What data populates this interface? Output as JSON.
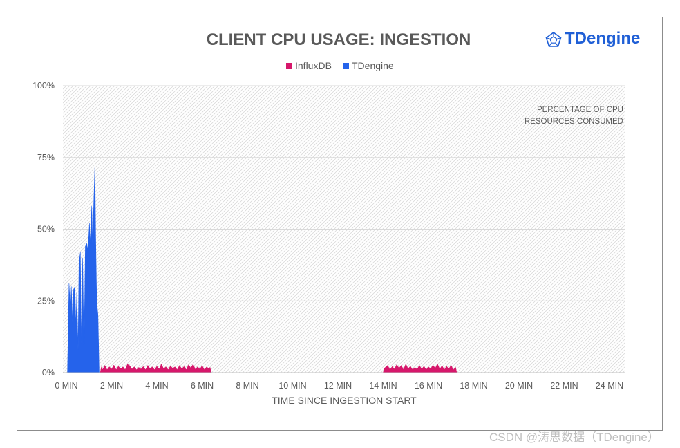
{
  "brand": {
    "name": "TDengine",
    "logo_icon": "tdengine-logo-icon",
    "color": "#1f5fd6"
  },
  "watermark": "CSDN @涛思数据（TDengine）",
  "chart_data": {
    "type": "area",
    "title": "CLIENT CPU USAGE: INGESTION",
    "xlabel": "TIME SINCE INGESTION START",
    "ylabel": "",
    "annotation": [
      "PERCENTAGE OF CPU",
      "RESOURCES CONSUMED"
    ],
    "legend_position": "top-center",
    "grid": true,
    "xlim": [
      0,
      25
    ],
    "ylim": [
      0,
      100
    ],
    "x_unit": "MIN",
    "y_unit": "%",
    "xticks": [
      "0 MIN",
      "2 MIN",
      "4 MIN",
      "6 MIN",
      "8 MIN",
      "10 MIN",
      "12 MIN",
      "14 MIN",
      "16 MIN",
      "18 MIN",
      "20 MIN",
      "22 MIN",
      "24 MIN"
    ],
    "yticks": [
      "0%",
      "25%",
      "50%",
      "75%",
      "100%"
    ],
    "series": [
      {
        "name": "InfluxDB",
        "color": "#d6176b",
        "points": [
          [
            1.5,
            0
          ],
          [
            1.55,
            2
          ],
          [
            1.6,
            1
          ],
          [
            1.7,
            2.5
          ],
          [
            1.8,
            1
          ],
          [
            1.9,
            2
          ],
          [
            2.0,
            1.2
          ],
          [
            2.1,
            2.6
          ],
          [
            2.2,
            1
          ],
          [
            2.3,
            2.2
          ],
          [
            2.4,
            1.3
          ],
          [
            2.5,
            2
          ],
          [
            2.6,
            1
          ],
          [
            2.7,
            2.9
          ],
          [
            2.8,
            2.4
          ],
          [
            2.9,
            1.2
          ],
          [
            3.0,
            2
          ],
          [
            3.1,
            1
          ],
          [
            3.2,
            1.8
          ],
          [
            3.3,
            1.2
          ],
          [
            3.4,
            2.1
          ],
          [
            3.5,
            1
          ],
          [
            3.6,
            2.5
          ],
          [
            3.7,
            1.3
          ],
          [
            3.8,
            2
          ],
          [
            3.9,
            1
          ],
          [
            4.0,
            2.2
          ],
          [
            4.1,
            1.2
          ],
          [
            4.2,
            3
          ],
          [
            4.3,
            1.3
          ],
          [
            4.4,
            2
          ],
          [
            4.5,
            1
          ],
          [
            4.6,
            2.3
          ],
          [
            4.7,
            1.5
          ],
          [
            4.8,
            2
          ],
          [
            4.9,
            1
          ],
          [
            5.0,
            2.5
          ],
          [
            5.1,
            1.3
          ],
          [
            5.2,
            2.1
          ],
          [
            5.3,
            1
          ],
          [
            5.4,
            2.7
          ],
          [
            5.5,
            1.6
          ],
          [
            5.6,
            2.9
          ],
          [
            5.7,
            1.1
          ],
          [
            5.8,
            2
          ],
          [
            5.9,
            1.2
          ],
          [
            6.0,
            2.4
          ],
          [
            6.1,
            1
          ],
          [
            6.2,
            2
          ],
          [
            6.3,
            1.3
          ],
          [
            6.35,
            1.8
          ],
          [
            6.4,
            0
          ],
          [
            14.0,
            0
          ],
          [
            14.05,
            1.5
          ],
          [
            14.2,
            2.5
          ],
          [
            14.3,
            1
          ],
          [
            14.4,
            2.1
          ],
          [
            14.5,
            1.2
          ],
          [
            14.6,
            2.8
          ],
          [
            14.7,
            1.5
          ],
          [
            14.8,
            2.5
          ],
          [
            14.9,
            1
          ],
          [
            15.0,
            3
          ],
          [
            15.1,
            1.3
          ],
          [
            15.2,
            2.2
          ],
          [
            15.3,
            1
          ],
          [
            15.4,
            1.8
          ],
          [
            15.5,
            1.1
          ],
          [
            15.6,
            2.5
          ],
          [
            15.7,
            1.2
          ],
          [
            15.8,
            2.2
          ],
          [
            15.9,
            1
          ],
          [
            16.0,
            2
          ],
          [
            16.1,
            1.3
          ],
          [
            16.2,
            2.6
          ],
          [
            16.3,
            1.5
          ],
          [
            16.4,
            3
          ],
          [
            16.5,
            1.2
          ],
          [
            16.6,
            2.4
          ],
          [
            16.7,
            1
          ],
          [
            16.8,
            2.2
          ],
          [
            16.9,
            1.3
          ],
          [
            17.0,
            2.5
          ],
          [
            17.1,
            1
          ],
          [
            17.2,
            1.8
          ],
          [
            17.25,
            0
          ]
        ]
      },
      {
        "name": "TDengine",
        "color": "#2563eb",
        "points": [
          [
            0.05,
            0
          ],
          [
            0.12,
            31
          ],
          [
            0.18,
            22
          ],
          [
            0.22,
            30
          ],
          [
            0.28,
            16
          ],
          [
            0.32,
            29
          ],
          [
            0.38,
            30
          ],
          [
            0.42,
            16
          ],
          [
            0.46,
            28
          ],
          [
            0.52,
            8
          ],
          [
            0.56,
            38
          ],
          [
            0.62,
            42
          ],
          [
            0.66,
            10
          ],
          [
            0.72,
            40
          ],
          [
            0.78,
            6
          ],
          [
            0.84,
            44
          ],
          [
            0.9,
            45
          ],
          [
            0.94,
            43
          ],
          [
            0.98,
            46
          ],
          [
            1.02,
            52
          ],
          [
            1.06,
            45
          ],
          [
            1.12,
            58
          ],
          [
            1.16,
            45
          ],
          [
            1.22,
            62
          ],
          [
            1.26,
            72
          ],
          [
            1.3,
            45
          ],
          [
            1.34,
            25
          ],
          [
            1.4,
            20
          ],
          [
            1.45,
            0
          ]
        ]
      }
    ]
  }
}
